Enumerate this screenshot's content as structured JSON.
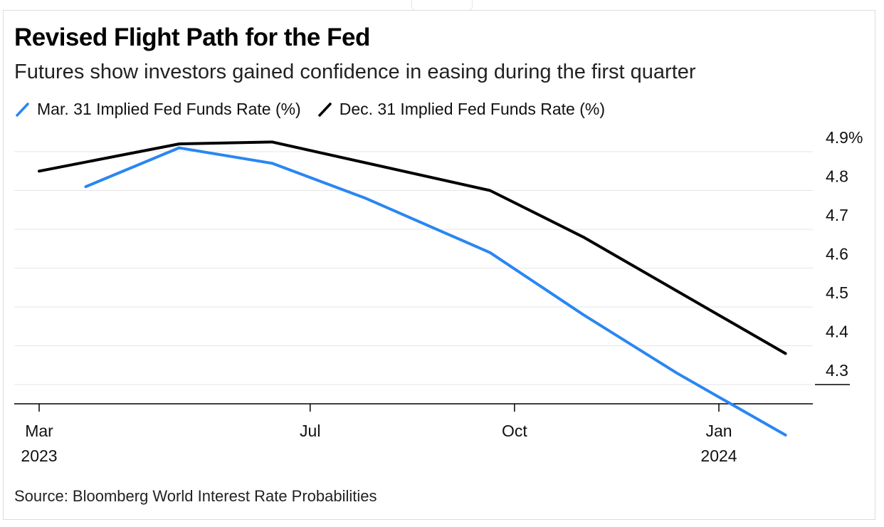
{
  "title": "Revised Flight Path for the Fed",
  "subtitle": "Futures show investors gained confidence in easing during the first quarter",
  "source": "Source: Bloomberg World Interest Rate Probabilities",
  "colors": {
    "mar31": "#2a86f2",
    "dec31": "#000000",
    "grid": "#e6e6e6",
    "axis": "#000000"
  },
  "chart_data": {
    "type": "line",
    "title": "Revised Flight Path for the Fed",
    "subtitle": "Futures show investors gained confidence in easing during the first quarter",
    "xlabel": "",
    "ylabel": "",
    "y_tick_labels": [
      "4.9%",
      "4.8",
      "4.7",
      "4.6",
      "4.5",
      "4.4",
      "4.3"
    ],
    "y_ticks": [
      4.9,
      4.8,
      4.7,
      4.6,
      4.5,
      4.4,
      4.3
    ],
    "ylim": [
      4.25,
      4.92
    ],
    "x_ticks": [
      {
        "date": "2023-03-01",
        "label": "Mar",
        "sublabel": "2023"
      },
      {
        "date": "2023-07-01",
        "label": "Jul",
        "sublabel": ""
      },
      {
        "date": "2023-10-01",
        "label": "Oct",
        "sublabel": ""
      },
      {
        "date": "2024-01-01",
        "label": "Jan",
        "sublabel": "2024"
      }
    ],
    "xlim": [
      "2023-02-20",
      "2024-02-20"
    ],
    "grid": true,
    "legend_position": "top-left",
    "series": [
      {
        "name": "Mar. 31 Implied Fed Funds Rate (%)",
        "color": "#2a86f2",
        "points": [
          {
            "x": "2023-03-22",
            "y": 4.81
          },
          {
            "x": "2023-05-03",
            "y": 4.91
          },
          {
            "x": "2023-06-14",
            "y": 4.87
          },
          {
            "x": "2023-07-26",
            "y": 4.78
          },
          {
            "x": "2023-09-20",
            "y": 4.64
          },
          {
            "x": "2023-11-01",
            "y": 4.48
          },
          {
            "x": "2023-12-13",
            "y": 4.33
          },
          {
            "x": "2024-01-31",
            "y": 4.17
          }
        ]
      },
      {
        "name": "Dec. 31 Implied Fed Funds Rate (%)",
        "color": "#000000",
        "points": [
          {
            "x": "2023-03-01",
            "y": 4.85
          },
          {
            "x": "2023-05-03",
            "y": 4.92
          },
          {
            "x": "2023-06-14",
            "y": 4.925
          },
          {
            "x": "2023-09-20",
            "y": 4.8
          },
          {
            "x": "2023-11-01",
            "y": 4.68
          },
          {
            "x": "2024-01-31",
            "y": 4.38
          }
        ]
      }
    ]
  }
}
